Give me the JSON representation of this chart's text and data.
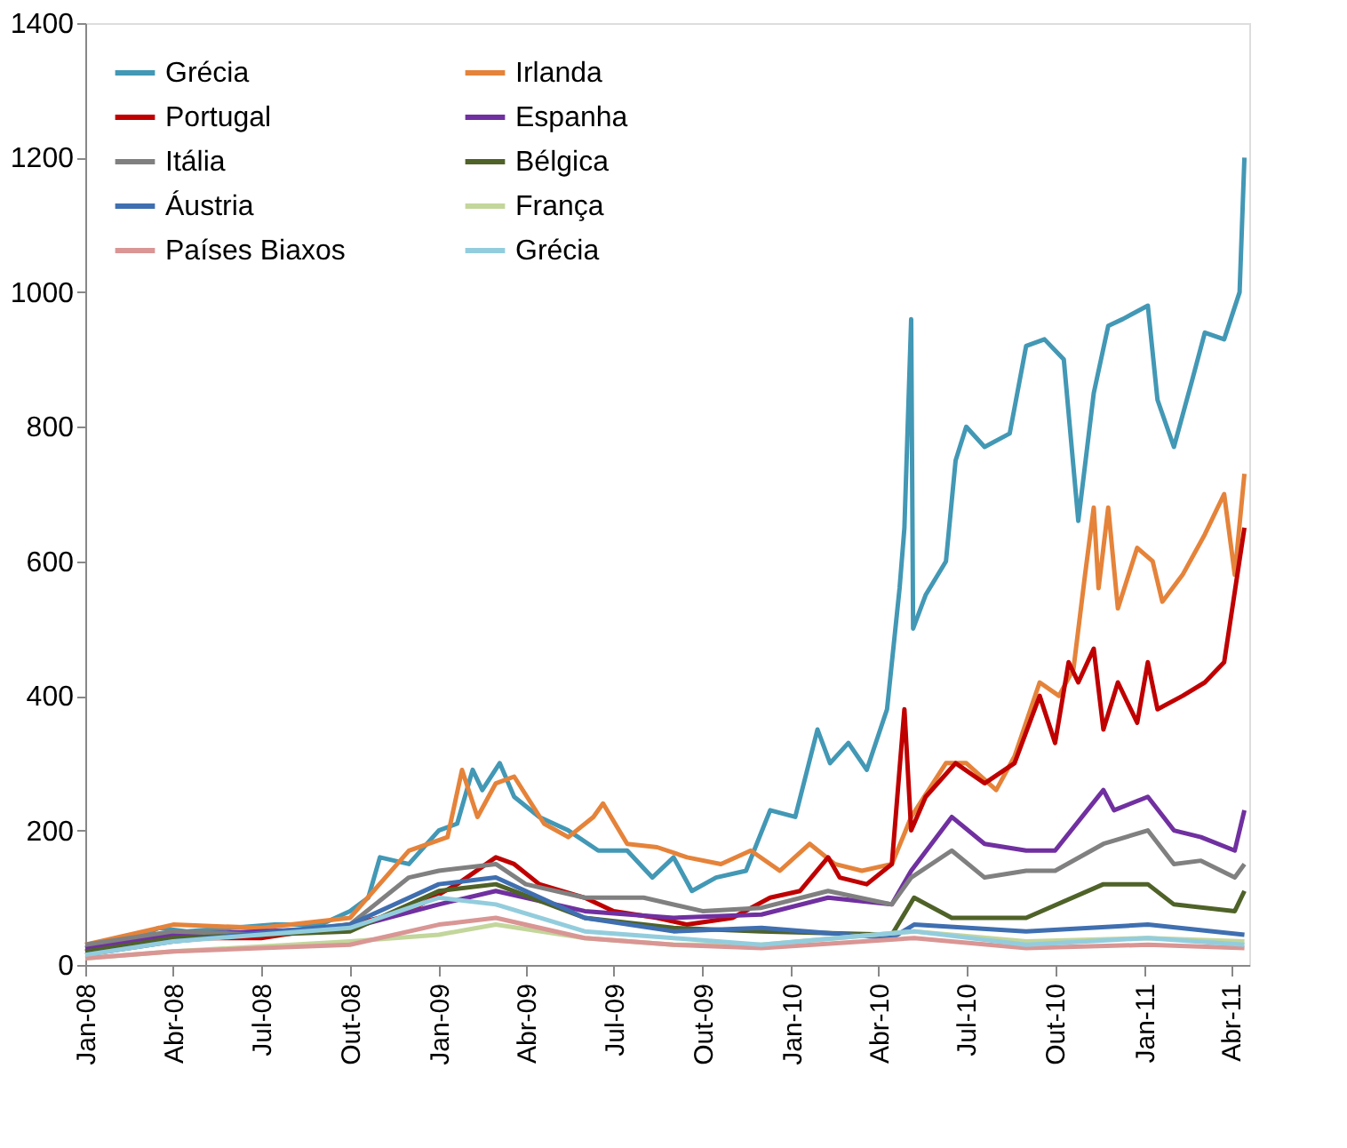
{
  "chart_data": {
    "type": "line",
    "legend": "top left",
    "grid": false,
    "marker": "none",
    "line_style": "solid",
    "xlim": [
      "2008-01-01",
      "2011-04-20"
    ],
    "xticks": [
      {
        "value": "2008-01-01",
        "label": "Jan-08"
      },
      {
        "value": "2008-04-01",
        "label": "Abr-08"
      },
      {
        "value": "2008-07-01",
        "label": "Jul-08"
      },
      {
        "value": "2008-10-01",
        "label": "Out-08"
      },
      {
        "value": "2009-01-01",
        "label": "Jan-09"
      },
      {
        "value": "2009-04-01",
        "label": "Abr-09"
      },
      {
        "value": "2009-07-01",
        "label": "Jul-09"
      },
      {
        "value": "2009-10-01",
        "label": "Out-09"
      },
      {
        "value": "2010-01-01",
        "label": "Jan-10"
      },
      {
        "value": "2010-04-01",
        "label": "Abr-10"
      },
      {
        "value": "2010-07-01",
        "label": "Jul-10"
      },
      {
        "value": "2010-10-01",
        "label": "Out-10"
      },
      {
        "value": "2011-01-01",
        "label": "Jan-11"
      },
      {
        "value": "2011-04-01",
        "label": "Abr-11"
      }
    ],
    "ylim": [
      0,
      1400
    ],
    "yticks": [
      0,
      200,
      400,
      600,
      800,
      1000,
      1200,
      1400
    ],
    "series": [
      {
        "name": "Grécia",
        "color": "#4298b5",
        "x": [
          "2008-01-01",
          "2008-02-15",
          "2008-03-17",
          "2008-04-15",
          "2008-06-01",
          "2008-07-15",
          "2008-09-01",
          "2008-10-01",
          "2008-10-20",
          "2008-11-01",
          "2008-12-01",
          "2009-01-01",
          "2009-01-20",
          "2009-02-05",
          "2009-02-15",
          "2009-03-05",
          "2009-03-20",
          "2009-04-15",
          "2009-05-15",
          "2009-06-15",
          "2009-07-15",
          "2009-08-10",
          "2009-09-01",
          "2009-09-20",
          "2009-10-15",
          "2009-11-15",
          "2009-12-10",
          "2010-01-05",
          "2010-01-28",
          "2010-02-10",
          "2010-03-01",
          "2010-03-20",
          "2010-04-10",
          "2010-04-23",
          "2010-04-28",
          "2010-05-05",
          "2010-05-07",
          "2010-05-20",
          "2010-06-10",
          "2010-06-20",
          "2010-07-01",
          "2010-07-20",
          "2010-08-15",
          "2010-09-01",
          "2010-09-20",
          "2010-10-10",
          "2010-10-25",
          "2010-11-10",
          "2010-11-25",
          "2010-12-10",
          "2011-01-05",
          "2011-01-15",
          "2011-02-01",
          "2011-02-20",
          "2011-03-05",
          "2011-03-25",
          "2011-04-10",
          "2011-04-15"
        ],
        "values": [
          25,
          35,
          55,
          50,
          55,
          60,
          60,
          80,
          100,
          160,
          150,
          200,
          210,
          290,
          260,
          300,
          250,
          220,
          200,
          170,
          170,
          130,
          160,
          110,
          130,
          140,
          230,
          220,
          350,
          300,
          330,
          290,
          380,
          560,
          650,
          960,
          500,
          550,
          600,
          750,
          800,
          770,
          790,
          920,
          930,
          900,
          660,
          850,
          950,
          960,
          980,
          840,
          770,
          870,
          940,
          930,
          1000,
          1200
        ]
      },
      {
        "name": "Irlanda",
        "color": "#e5833a",
        "x": [
          "2008-01-01",
          "2008-04-01",
          "2008-07-01",
          "2008-10-01",
          "2008-12-01",
          "2009-01-10",
          "2009-01-25",
          "2009-02-10",
          "2009-03-01",
          "2009-03-20",
          "2009-04-20",
          "2009-05-15",
          "2009-06-10",
          "2009-06-20",
          "2009-07-15",
          "2009-08-15",
          "2009-09-15",
          "2009-10-20",
          "2009-11-20",
          "2009-12-20",
          "2010-01-20",
          "2010-02-15",
          "2010-03-15",
          "2010-04-15",
          "2010-05-05",
          "2010-06-10",
          "2010-07-01",
          "2010-08-01",
          "2010-08-20",
          "2010-09-15",
          "2010-10-05",
          "2010-10-20",
          "2010-11-01",
          "2010-11-10",
          "2010-11-15",
          "2010-11-25",
          "2010-12-05",
          "2010-12-25",
          "2011-01-10",
          "2011-01-20",
          "2011-02-10",
          "2011-03-05",
          "2011-03-25",
          "2011-04-05",
          "2011-04-15"
        ],
        "values": [
          30,
          60,
          55,
          70,
          170,
          190,
          290,
          220,
          270,
          280,
          210,
          190,
          220,
          240,
          180,
          175,
          160,
          150,
          170,
          140,
          180,
          150,
          140,
          150,
          220,
          300,
          300,
          260,
          310,
          420,
          400,
          440,
          580,
          680,
          560,
          680,
          530,
          620,
          600,
          540,
          580,
          640,
          700,
          580,
          730
        ]
      },
      {
        "name": "Portugal",
        "color": "#c00000",
        "x": [
          "2008-01-01",
          "2008-04-01",
          "2008-07-01",
          "2008-10-01",
          "2008-12-01",
          "2009-01-20",
          "2009-03-01",
          "2009-03-20",
          "2009-04-15",
          "2009-06-01",
          "2009-07-01",
          "2009-08-15",
          "2009-09-15",
          "2009-11-01",
          "2009-12-10",
          "2010-01-10",
          "2010-02-08",
          "2010-02-20",
          "2010-03-20",
          "2010-04-15",
          "2010-04-28",
          "2010-05-05",
          "2010-05-20",
          "2010-06-20",
          "2010-07-20",
          "2010-08-20",
          "2010-09-15",
          "2010-10-01",
          "2010-10-15",
          "2010-10-25",
          "2010-11-10",
          "2010-11-20",
          "2010-12-05",
          "2010-12-25",
          "2011-01-05",
          "2011-01-15",
          "2011-02-10",
          "2011-03-05",
          "2011-03-25",
          "2011-04-15"
        ],
        "values": [
          20,
          40,
          40,
          60,
          80,
          120,
          160,
          150,
          120,
          100,
          80,
          70,
          60,
          70,
          100,
          110,
          160,
          130,
          120,
          150,
          380,
          200,
          250,
          300,
          270,
          300,
          400,
          330,
          450,
          420,
          470,
          350,
          420,
          360,
          450,
          380,
          400,
          420,
          450,
          650
        ]
      },
      {
        "name": "Espanha",
        "color": "#7030a0",
        "x": [
          "2008-01-01",
          "2008-04-01",
          "2008-10-01",
          "2009-01-01",
          "2009-03-01",
          "2009-06-01",
          "2009-09-01",
          "2009-12-01",
          "2010-02-08",
          "2010-04-15",
          "2010-05-05",
          "2010-06-16",
          "2010-07-20",
          "2010-09-01",
          "2010-10-01",
          "2010-11-20",
          "2010-12-01",
          "2011-01-05",
          "2011-02-01",
          "2011-03-01",
          "2011-04-05",
          "2011-04-15"
        ],
        "values": [
          25,
          45,
          55,
          90,
          110,
          80,
          70,
          75,
          100,
          90,
          140,
          220,
          180,
          170,
          170,
          260,
          230,
          250,
          200,
          190,
          170,
          230
        ]
      },
      {
        "name": "Itália",
        "color": "#808080",
        "x": [
          "2008-01-01",
          "2008-04-01",
          "2008-07-01",
          "2008-10-01",
          "2008-12-01",
          "2009-01-01",
          "2009-03-01",
          "2009-04-01",
          "2009-06-01",
          "2009-08-01",
          "2009-10-01",
          "2009-12-01",
          "2010-02-08",
          "2010-04-15",
          "2010-05-05",
          "2010-06-16",
          "2010-07-20",
          "2010-09-01",
          "2010-10-01",
          "2010-11-20",
          "2011-01-05",
          "2011-02-01",
          "2011-03-01",
          "2011-04-05",
          "2011-04-15"
        ],
        "values": [
          30,
          50,
          45,
          60,
          130,
          140,
          150,
          120,
          100,
          100,
          80,
          85,
          110,
          90,
          130,
          170,
          130,
          140,
          140,
          180,
          200,
          150,
          155,
          130,
          150
        ]
      },
      {
        "name": "Bélgica",
        "color": "#4f6228",
        "x": [
          "2008-01-01",
          "2008-04-01",
          "2008-10-01",
          "2009-01-01",
          "2009-03-01",
          "2009-06-01",
          "2009-09-01",
          "2009-12-01",
          "2010-04-15",
          "2010-05-08",
          "2010-06-16",
          "2010-09-01",
          "2010-11-20",
          "2011-01-05",
          "2011-02-01",
          "2011-04-05",
          "2011-04-15"
        ],
        "values": [
          20,
          40,
          50,
          110,
          120,
          70,
          55,
          50,
          45,
          100,
          70,
          70,
          120,
          120,
          90,
          80,
          110
        ]
      },
      {
        "name": "Áustria",
        "color": "#3f6fb0",
        "x": [
          "2008-01-01",
          "2008-04-01",
          "2008-10-01",
          "2009-01-01",
          "2009-03-01",
          "2009-06-01",
          "2009-09-01",
          "2009-12-01",
          "2010-04-15",
          "2010-05-08",
          "2010-09-01",
          "2011-01-05",
          "2011-04-15"
        ],
        "values": [
          15,
          35,
          60,
          120,
          130,
          70,
          50,
          55,
          40,
          60,
          50,
          60,
          45
        ]
      },
      {
        "name": "França",
        "color": "#c3d69b",
        "x": [
          "2008-01-01",
          "2008-04-01",
          "2008-10-01",
          "2009-01-01",
          "2009-03-01",
          "2009-06-01",
          "2009-09-01",
          "2009-12-01",
          "2010-05-08",
          "2010-09-01",
          "2011-01-05",
          "2011-04-15"
        ],
        "values": [
          10,
          20,
          35,
          45,
          60,
          40,
          30,
          30,
          50,
          35,
          40,
          35
        ]
      },
      {
        "name": "Países Biaxos",
        "color": "#d99694",
        "x": [
          "2008-01-01",
          "2008-04-01",
          "2008-10-01",
          "2009-01-01",
          "2009-03-01",
          "2009-06-01",
          "2009-09-01",
          "2009-12-01",
          "2010-05-08",
          "2010-09-01",
          "2011-01-05",
          "2011-04-15"
        ],
        "values": [
          10,
          20,
          30,
          60,
          70,
          40,
          30,
          25,
          40,
          25,
          30,
          25
        ]
      },
      {
        "name": "Grécia",
        "color": "#93cddd",
        "x": [
          "2008-01-01",
          "2008-04-01",
          "2008-10-01",
          "2009-01-01",
          "2009-03-01",
          "2009-06-01",
          "2009-09-01",
          "2009-12-01",
          "2010-05-08",
          "2010-09-01",
          "2011-01-05",
          "2011-04-15"
        ],
        "values": [
          15,
          35,
          55,
          100,
          90,
          50,
          40,
          30,
          50,
          30,
          40,
          30
        ]
      }
    ]
  }
}
